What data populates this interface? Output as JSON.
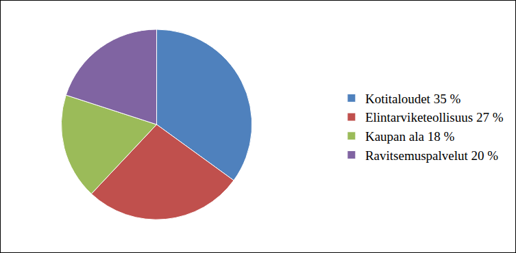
{
  "chart_data": {
    "type": "pie",
    "categories": [
      "Kotitaloudet 35 %",
      "Elintarviketeollisuus 27 %",
      "Kaupan ala 18 %",
      "Ravitsemuspalvelut 20 %"
    ],
    "values": [
      35,
      27,
      18,
      20
    ],
    "colors": [
      "#4f81bd",
      "#c0504d",
      "#9bbb59",
      "#8064a2"
    ],
    "legend": "right"
  }
}
